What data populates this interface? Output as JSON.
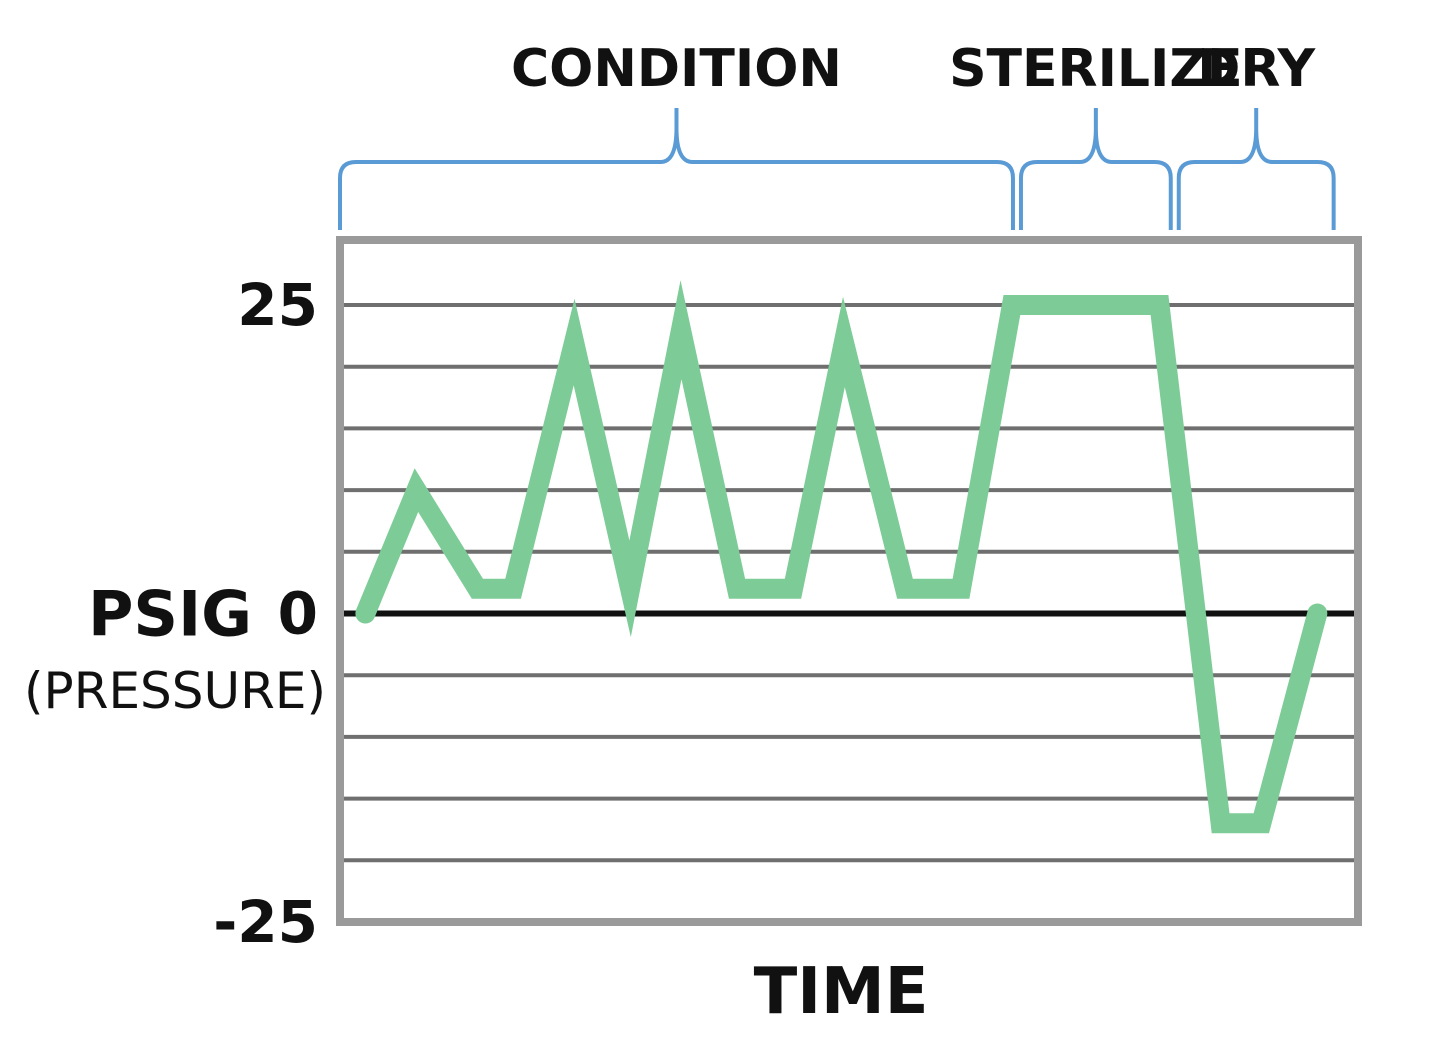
{
  "chart_data": {
    "type": "line",
    "title": "",
    "xlabel": "TIME",
    "ylabel": "PSIG",
    "ylabel_sub": "(PRESSURE)",
    "ylim": [
      -25,
      25
    ],
    "y_ticks": [
      {
        "value": 25,
        "label": "25"
      },
      {
        "value": 0,
        "label": "0"
      },
      {
        "value": -25,
        "label": "-25"
      }
    ],
    "gridlines": [
      25,
      20,
      15,
      10,
      5,
      0,
      -5,
      -10,
      -15,
      -20,
      -25
    ],
    "xlim": [
      0,
      100
    ],
    "phases": [
      {
        "name": "CONDITION",
        "start": 0,
        "end": 66.5
      },
      {
        "name": "STERILIZE",
        "start": 66.5,
        "end": 82
      },
      {
        "name": "DRY",
        "start": 82,
        "end": 98
      }
    ],
    "series": [
      {
        "color": "#7dcc97",
        "x": [
          2.5,
          7.5,
          13.5,
          17,
          23,
          28.5,
          33.5,
          39,
          44.5,
          49.5,
          55.5,
          61,
          66,
          70,
          80.5,
          86.5,
          90.5,
          96
        ],
        "y": [
          0,
          10,
          2,
          2,
          22,
          2,
          23,
          2,
          2,
          22,
          2,
          2,
          25,
          25,
          25,
          -17,
          -17,
          0
        ]
      }
    ],
    "colors": {
      "line": "#7dcc97",
      "bracket": "#5b9bd5",
      "grid": "#6f6f6f",
      "frame": "#9a9a9a",
      "zero_line": "#111111"
    }
  }
}
